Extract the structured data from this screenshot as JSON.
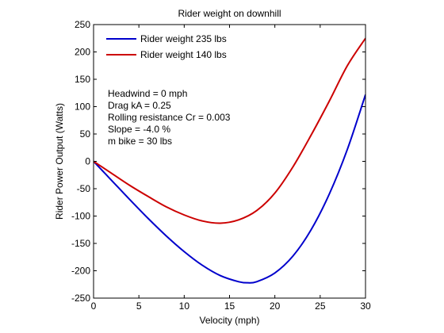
{
  "chart_data": {
    "type": "line",
    "title": "Rider weight on downhill",
    "xlabel": "Velocity (mph)",
    "ylabel": "Rider Power Output (Watts)",
    "xlim": [
      0,
      30
    ],
    "ylim": [
      -250,
      250
    ],
    "xticks": [
      0,
      5,
      10,
      15,
      20,
      25,
      30
    ],
    "yticks": [
      -250,
      -200,
      -150,
      -100,
      -50,
      0,
      50,
      100,
      150,
      200,
      250
    ],
    "grid": false,
    "legend_position": "top-left",
    "series": [
      {
        "name": "Rider weight 235 lbs",
        "color": "#0000cc",
        "x": [
          0,
          2,
          4,
          6,
          8,
          10,
          12,
          14,
          16,
          17,
          18,
          20,
          22,
          24,
          26,
          28,
          30
        ],
        "y": [
          0,
          -35,
          -70,
          -104,
          -136,
          -165,
          -190,
          -209,
          -220,
          -222,
          -220,
          -204,
          -173,
          -125,
          -60,
          22,
          122
        ]
      },
      {
        "name": "Rider weight 140 lbs",
        "color": "#cc0000",
        "x": [
          0,
          2,
          4,
          6,
          8,
          10,
          12,
          14,
          16,
          18,
          20,
          22,
          24,
          26,
          28,
          30
        ],
        "y": [
          0,
          -22,
          -44,
          -64,
          -83,
          -98,
          -109,
          -113,
          -107,
          -90,
          -58,
          -10,
          48,
          110,
          175,
          225
        ]
      }
    ],
    "annotations": [
      "Headwind = 0 mph",
      "Drag kA = 0.25",
      "Rolling resistance Cr = 0.003",
      "Slope = -4.0 %",
      "m bike = 30 lbs"
    ]
  }
}
